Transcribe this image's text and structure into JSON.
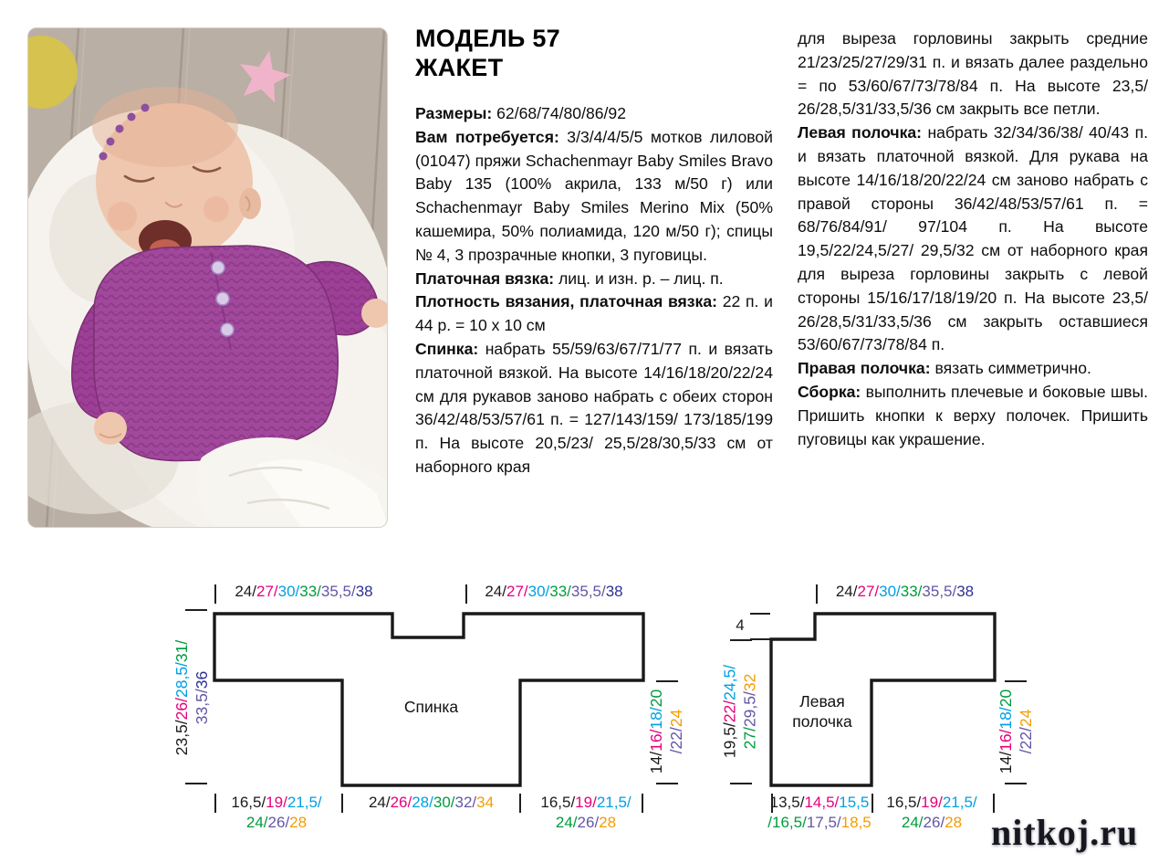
{
  "page": {
    "title_line1": "МОДЕЛЬ 57",
    "title_line2": "ЖАКЕТ",
    "watermark": "nitkoj.ru"
  },
  "instructions": {
    "col1": [
      {
        "label": "Размеры:",
        "text": " 62/68/74/80/86/92"
      },
      {
        "label": "Вам потребуется:",
        "text": " 3/3/4/4/5/5 мотков лиловой (01047) пряжи Schachenmayr Baby Smiles Bravo Baby 135 (100% акрила, 133 м/50 г) или Schachenmayr Baby Smiles Merino Mix (50% кашемира, 50% полиамида, 120 м/50 г); спицы № 4, 3 прозрачные кнопки, 3 пуговицы."
      },
      {
        "label": "Платочная вязка:",
        "text": " лиц. и изн. р. – лиц. п."
      },
      {
        "label": "Плотность вязания, платочная вязка:",
        "text": " 22 п. и 44 р. = 10 х 10 см"
      },
      {
        "label": "Спинка:",
        "text": " набрать 55/59/63/67/71/77 п. и вязать платочной вязкой. На высоте 14/16/18/20/22/24 см для рукавов заново набрать с обеих сторон 36/42/48/53/57/61 п. = 127/143/159/ 173/185/199 п. На высоте 20,5/23/ 25,5/28/30,5/33 см от наборного края"
      }
    ],
    "col2": [
      {
        "label": "",
        "text": "для выреза горловины закрыть средние 21/23/25/27/29/31 п. и вязать далее раздельно = по 53/60/67/73/78/84 п. На высоте 23,5/ 26/28,5/31/33,5/36 см закрыть все петли."
      },
      {
        "label": "Левая полочка:",
        "text": " набрать 32/34/36/38/ 40/43 п. и вязать платочной вязкой. Для рукава на высоте 14/16/18/20/22/24 см заново набрать с правой стороны 36/42/48/53/57/61 п. = 68/76/84/91/ 97/104 п. На высоте 19,5/22/24,5/27/ 29,5/32 см от наборного края для выреза горловины закрыть с левой стороны 15/16/17/18/19/20 п. На высоте 23,5/ 26/28,5/31/33,5/36 см закрыть оставшиеся 53/60/67/73/78/84 п."
      },
      {
        "label": "Правая полочка:",
        "text": " вязать симметрично."
      },
      {
        "label": "Сборка:",
        "text": " выполнить плечевые и боковые швы. Пришить кнопки к верху полочек. Пришить пуговицы как украшение."
      }
    ]
  },
  "diagrams": {
    "colors": {
      "s1": "#1c1c1c",
      "s2": "#e6007e",
      "s3": "#009fe3",
      "s4": "#009b3d",
      "s5": "#6456a5",
      "s6": "#f59c00",
      "s6b": "#2e3192"
    },
    "labels": {
      "shoulder_width": [
        [
          [
            "24/",
            "s1"
          ],
          [
            "27/",
            "s2"
          ],
          [
            "30/",
            "s3"
          ],
          [
            "33/",
            "s4"
          ],
          [
            "35,5/",
            "s5"
          ],
          [
            "38",
            "s6b"
          ]
        ]
      ],
      "back_total_height": [
        [
          [
            "23,5/",
            "s1"
          ],
          [
            "26/",
            "s2"
          ],
          [
            "28,5/",
            "s3"
          ],
          [
            "31/",
            "s4"
          ]
        ],
        [
          [
            "33,5/",
            "s5"
          ],
          [
            "36",
            "s6b"
          ]
        ]
      ],
      "under_sleeve_height": [
        [
          [
            "14/",
            "s1"
          ],
          [
            "16/",
            "s2"
          ],
          [
            "18/",
            "s3"
          ],
          [
            "20",
            "s4"
          ]
        ],
        [
          [
            "/22/",
            "s5"
          ],
          [
            "24",
            "s6"
          ]
        ]
      ],
      "sleeve_extension": [
        [
          [
            "16,5/",
            "s1"
          ],
          [
            "19/",
            "s2"
          ],
          [
            "21,5/",
            "s3"
          ]
        ],
        [
          [
            "24/",
            "s4"
          ],
          [
            "26/",
            "s5"
          ],
          [
            "28",
            "s6"
          ]
        ]
      ],
      "back_hem_width": [
        [
          [
            "24/",
            "s1"
          ],
          [
            "26/",
            "s2"
          ],
          [
            "28/",
            "s3"
          ],
          [
            "30/",
            "s4"
          ],
          [
            "32/",
            "s5"
          ],
          [
            "34",
            "s6"
          ]
        ]
      ],
      "front_neck_height": [
        [
          [
            "19,5/",
            "s1"
          ],
          [
            "22/",
            "s2"
          ],
          [
            "24,5/",
            "s3"
          ]
        ],
        [
          [
            "27/",
            "s4"
          ],
          [
            "29,5/",
            "s5"
          ],
          [
            "32",
            "s6"
          ]
        ]
      ],
      "front_hem_width": [
        [
          [
            "13,5/",
            "s1"
          ],
          [
            "14,5/",
            "s2"
          ],
          [
            "15,5",
            "s3"
          ]
        ],
        [
          [
            "/16,5/",
            "s4"
          ],
          [
            "17,5/",
            "s5"
          ],
          [
            "18,5",
            "s6"
          ]
        ]
      ],
      "neck_drop": [
        [
          [
            "4",
            "s1"
          ]
        ]
      ]
    },
    "back": {
      "caption": "Спинка"
    },
    "left_front": {
      "caption_line1": "Левая",
      "caption_line2": "полочка"
    }
  }
}
